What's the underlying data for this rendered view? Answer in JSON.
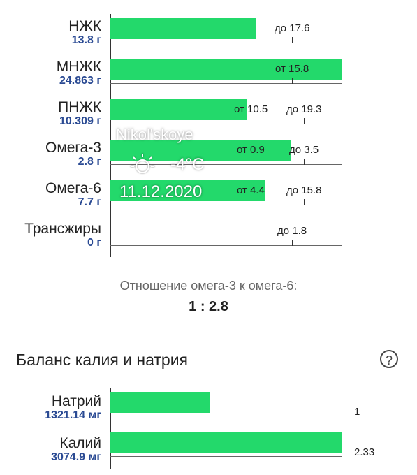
{
  "fats": [
    {
      "name": "НЖК",
      "value": "13.8 г",
      "fill": 0.63,
      "notes": [
        {
          "text": "до 17.6",
          "pos": 0.79
        }
      ]
    },
    {
      "name": "МНЖК",
      "value": "24.863 г",
      "fill": 1.0,
      "notes": [
        {
          "text": "от 15.8",
          "pos": 0.79
        }
      ]
    },
    {
      "name": "ПНЖК",
      "value": "10.309 г",
      "fill": 0.59,
      "notes": [
        {
          "text": "от 10.5",
          "pos": 0.61
        },
        {
          "text": "до 19.3",
          "pos": 0.84
        }
      ]
    },
    {
      "name": "Омега-3",
      "value": "2.8 г",
      "fill": 0.78,
      "notes": [
        {
          "text": "от 0.9",
          "pos": 0.61
        },
        {
          "text": "до 3.5",
          "pos": 0.84
        }
      ]
    },
    {
      "name": "Омега-6",
      "value": "7.7 г",
      "fill": 0.67,
      "notes": [
        {
          "text": "от 4.4",
          "pos": 0.61
        },
        {
          "text": "до 15.8",
          "pos": 0.84
        }
      ]
    },
    {
      "name": "Трансжиры",
      "value": "0 г",
      "fill": 0,
      "notes": [
        {
          "text": "до 1.8",
          "pos": 0.79
        }
      ]
    }
  ],
  "ratio": {
    "label": "Отношение омега-3 к омега-6:",
    "value": "1 : 2.8"
  },
  "balance": {
    "title": "Баланс калия и натрия",
    "help": "?",
    "items": [
      {
        "name": "Натрий",
        "value": "1321.14 мг",
        "fill": 0.43,
        "note": "1"
      },
      {
        "name": "Калий",
        "value": "3074.9 мг",
        "fill": 1.0,
        "note": "2.33"
      }
    ]
  },
  "watermark": {
    "place": "Nikol'skoye",
    "temp": "-4°C",
    "date": "11.12.2020",
    "icon": "sun-icon"
  },
  "colors": {
    "bar": "#23d96b",
    "value": "#2a4a93"
  }
}
